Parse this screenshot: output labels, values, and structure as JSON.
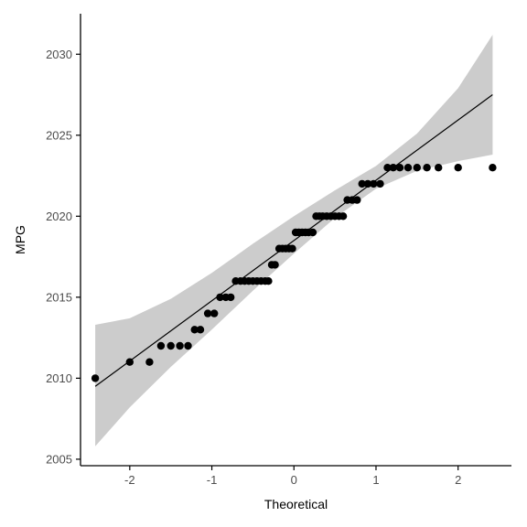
{
  "chart_data": {
    "type": "scatter",
    "title": "",
    "xlabel": "Theoretical",
    "ylabel": "MPG",
    "xlim": [
      -2.6,
      2.65
    ],
    "ylim": [
      2004.6,
      2032.5
    ],
    "x_ticks": [
      -2,
      -1,
      0,
      1,
      2
    ],
    "y_ticks": [
      2005,
      2010,
      2015,
      2020,
      2025,
      2030
    ],
    "grid": false,
    "legend": "none",
    "series": [
      {
        "kind": "points",
        "x": [
          -2.42,
          -2.0,
          -1.76,
          -1.62,
          -1.5,
          -1.39,
          -1.29,
          -1.21,
          -1.14,
          -1.05,
          -0.97,
          -0.9,
          -0.83,
          -0.77,
          -0.71,
          -0.65,
          -0.6,
          -0.55,
          -0.5,
          -0.45,
          -0.4,
          -0.35,
          -0.31,
          -0.27,
          -0.23,
          -0.18,
          -0.14,
          -0.1,
          -0.06,
          -0.02,
          0.02,
          0.06,
          0.1,
          0.14,
          0.18,
          0.23,
          0.27,
          0.31,
          0.35,
          0.4,
          0.45,
          0.5,
          0.55,
          0.6,
          0.65,
          0.71,
          0.77,
          0.83,
          0.9,
          0.97,
          1.05,
          1.14,
          1.21,
          1.29,
          1.39,
          1.5,
          1.62,
          1.76,
          2.0,
          2.42
        ],
        "y": [
          2010,
          2011,
          2011,
          2012,
          2012,
          2012,
          2012,
          2013,
          2013,
          2014,
          2014,
          2015,
          2015,
          2015,
          2016,
          2016,
          2016,
          2016,
          2016,
          2016,
          2016,
          2016,
          2016,
          2017,
          2017,
          2018,
          2018,
          2018,
          2018,
          2018,
          2019,
          2019,
          2019,
          2019,
          2019,
          2019,
          2020,
          2020,
          2020,
          2020,
          2020,
          2020,
          2020,
          2020,
          2021,
          2021,
          2021,
          2022,
          2022,
          2022,
          2022,
          2023,
          2023,
          2023,
          2023,
          2023,
          2023,
          2023,
          2023,
          2023
        ]
      },
      {
        "kind": "reference-line",
        "x": [
          -2.42,
          2.42
        ],
        "y": [
          2009.5,
          2027.5
        ]
      },
      {
        "kind": "confidence-band",
        "color": "#cccccc",
        "x": [
          -2.42,
          -2.0,
          -1.5,
          -1.0,
          -0.5,
          0.0,
          0.5,
          1.0,
          1.5,
          2.0,
          2.42
        ],
        "lower": [
          2005.8,
          2008.2,
          2010.7,
          2013.0,
          2015.4,
          2017.7,
          2019.9,
          2021.7,
          2022.8,
          2023.4,
          2023.8
        ],
        "upper": [
          2013.3,
          2013.7,
          2014.9,
          2016.5,
          2018.3,
          2020.0,
          2021.6,
          2023.1,
          2025.1,
          2027.9,
          2031.2
        ]
      }
    ]
  }
}
